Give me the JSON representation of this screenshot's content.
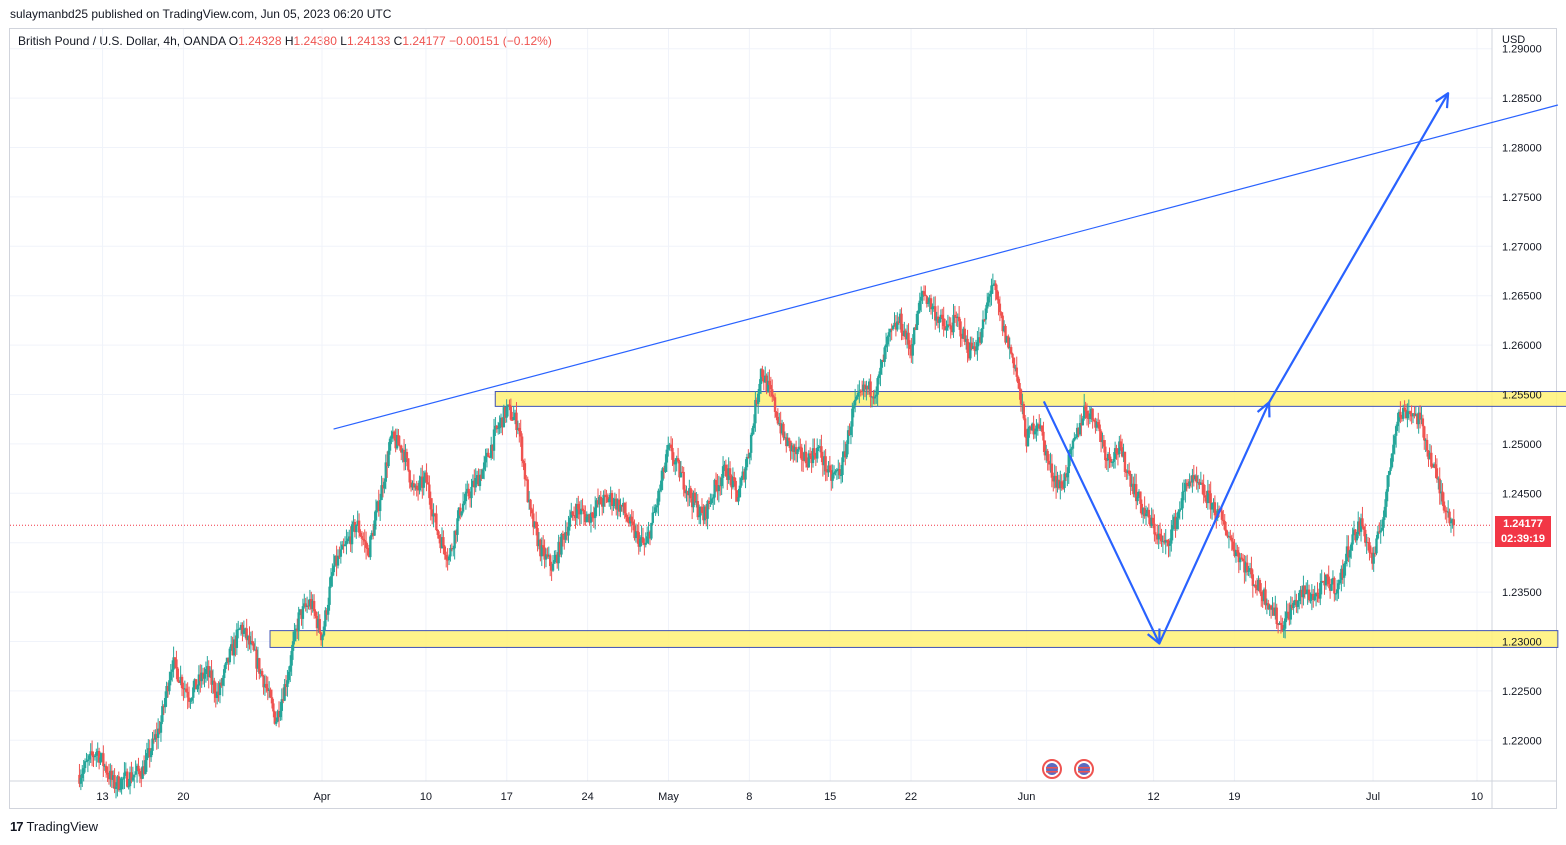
{
  "header": {
    "published": "sulaymanbd25 published on TradingView.com, Jun 05, 2023 06:20 UTC"
  },
  "legend": {
    "symbol": "British Pound / U.S. Dollar, 4h, OANDA",
    "open_label": "O",
    "open": "1.24328",
    "high_label": "H",
    "high": "1.24380",
    "low_label": "L",
    "low": "1.24133",
    "close_label": "C",
    "close": "1.24177",
    "change": "−0.00151 (−0.12%)"
  },
  "axis": {
    "currency": "USD",
    "current_price": "1.24177",
    "countdown": "02:39:19"
  },
  "footer": {
    "brand": "TradingView",
    "brand_mark": "17"
  },
  "colors": {
    "up": "#26a69a",
    "down": "#ef5350",
    "zone_fill": "#fff176",
    "zone_border": "#3f51b5",
    "trendline": "#2962ff",
    "arrow": "#2962ff",
    "price_line": "#f23645"
  },
  "chart_data": {
    "type": "candlestick",
    "symbol": "GBPUSD",
    "timeframe": "4h",
    "y_ticks": [
      1.22,
      1.225,
      1.23,
      1.235,
      1.24,
      1.245,
      1.25,
      1.255,
      1.26,
      1.265,
      1.27,
      1.275,
      1.28,
      1.285,
      1.29
    ],
    "y_tick_labels": [
      "1.22000",
      "1.22500",
      "1.23000",
      "1.23500",
      "1.24000",
      "1.24500",
      "1.25000",
      "1.25500",
      "1.26000",
      "1.26500",
      "1.27000",
      "1.27500",
      "1.28000",
      "1.28500",
      "1.29000"
    ],
    "x_ticks": [
      {
        "label": "13",
        "day": -19
      },
      {
        "label": "20",
        "day": -12
      },
      {
        "label": "Apr",
        "day": 0
      },
      {
        "label": "10",
        "day": 9
      },
      {
        "label": "17",
        "day": 16
      },
      {
        "label": "24",
        "day": 23
      },
      {
        "label": "May",
        "day": 30
      },
      {
        "label": "8",
        "day": 37
      },
      {
        "label": "15",
        "day": 44
      },
      {
        "label": "22",
        "day": 51
      },
      {
        "label": "Jun",
        "day": 61
      },
      {
        "label": "12",
        "day": 72
      },
      {
        "label": "19",
        "day": 79
      },
      {
        "label": "Jul",
        "day": 91
      },
      {
        "label": "10",
        "day": 100
      }
    ],
    "price_path": [
      {
        "day": -21,
        "price": 1.2165
      },
      {
        "day": -19.5,
        "price": 1.219
      },
      {
        "day": -18,
        "price": 1.2155
      },
      {
        "day": -15.5,
        "price": 1.217
      },
      {
        "day": -14,
        "price": 1.2215
      },
      {
        "day": -13,
        "price": 1.228
      },
      {
        "day": -11.5,
        "price": 1.2245
      },
      {
        "day": -10,
        "price": 1.227
      },
      {
        "day": -9,
        "price": 1.2245
      },
      {
        "day": -8,
        "price": 1.2285
      },
      {
        "day": -7,
        "price": 1.2315
      },
      {
        "day": -6,
        "price": 1.229
      },
      {
        "day": -5,
        "price": 1.226
      },
      {
        "day": -4,
        "price": 1.222
      },
      {
        "day": -3,
        "price": 1.2265
      },
      {
        "day": -2,
        "price": 1.2325
      },
      {
        "day": -1,
        "price": 1.234
      },
      {
        "day": 0,
        "price": 1.2305
      },
      {
        "day": 1,
        "price": 1.2375
      },
      {
        "day": 2,
        "price": 1.2395
      },
      {
        "day": 3,
        "price": 1.242
      },
      {
        "day": 4,
        "price": 1.239
      },
      {
        "day": 5,
        "price": 1.2445
      },
      {
        "day": 6,
        "price": 1.2505
      },
      {
        "day": 7,
        "price": 1.2495
      },
      {
        "day": 8,
        "price": 1.245
      },
      {
        "day": 9,
        "price": 1.2465
      },
      {
        "day": 10,
        "price": 1.241
      },
      {
        "day": 11,
        "price": 1.2385
      },
      {
        "day": 12,
        "price": 1.2435
      },
      {
        "day": 13,
        "price": 1.2455
      },
      {
        "day": 14,
        "price": 1.2475
      },
      {
        "day": 15,
        "price": 1.251
      },
      {
        "day": 16,
        "price": 1.2535
      },
      {
        "day": 17,
        "price": 1.252
      },
      {
        "day": 18,
        "price": 1.243
      },
      {
        "day": 19,
        "price": 1.239
      },
      {
        "day": 20,
        "price": 1.2375
      },
      {
        "day": 21,
        "price": 1.241
      },
      {
        "day": 22,
        "price": 1.2435
      },
      {
        "day": 23,
        "price": 1.2425
      },
      {
        "day": 24,
        "price": 1.244
      },
      {
        "day": 25,
        "price": 1.2445
      },
      {
        "day": 26,
        "price": 1.2435
      },
      {
        "day": 27,
        "price": 1.241
      },
      {
        "day": 28,
        "price": 1.2395
      },
      {
        "day": 29,
        "price": 1.244
      },
      {
        "day": 30,
        "price": 1.2495
      },
      {
        "day": 31,
        "price": 1.247
      },
      {
        "day": 32,
        "price": 1.2445
      },
      {
        "day": 33,
        "price": 1.2425
      },
      {
        "day": 34,
        "price": 1.2455
      },
      {
        "day": 35,
        "price": 1.2475
      },
      {
        "day": 36,
        "price": 1.2445
      },
      {
        "day": 37,
        "price": 1.2495
      },
      {
        "day": 38,
        "price": 1.2575
      },
      {
        "day": 39,
        "price": 1.2545
      },
      {
        "day": 40,
        "price": 1.2505
      },
      {
        "day": 41,
        "price": 1.249
      },
      {
        "day": 42,
        "price": 1.2485
      },
      {
        "day": 43,
        "price": 1.2495
      },
      {
        "day": 44,
        "price": 1.2465
      },
      {
        "day": 45,
        "price": 1.2475
      },
      {
        "day": 46,
        "price": 1.2535
      },
      {
        "day": 47,
        "price": 1.2555
      },
      {
        "day": 48,
        "price": 1.2555
      },
      {
        "day": 49,
        "price": 1.2605
      },
      {
        "day": 50,
        "price": 1.2625
      },
      {
        "day": 51,
        "price": 1.2595
      },
      {
        "day": 52,
        "price": 1.2655
      },
      {
        "day": 53,
        "price": 1.2635
      },
      {
        "day": 54,
        "price": 1.2615
      },
      {
        "day": 55,
        "price": 1.2625
      },
      {
        "day": 56,
        "price": 1.2595
      },
      {
        "day": 57,
        "price": 1.2605
      },
      {
        "day": 58,
        "price": 1.2665
      },
      {
        "day": 59,
        "price": 1.2615
      },
      {
        "day": 60,
        "price": 1.258
      },
      {
        "day": 61,
        "price": 1.2505
      },
      {
        "day": 62,
        "price": 1.2525
      },
      {
        "day": 63,
        "price": 1.2475
      },
      {
        "day": 64,
        "price": 1.2455
      },
      {
        "day": 65,
        "price": 1.2495
      },
      {
        "day": 66,
        "price": 1.2535
      },
      {
        "day": 67,
        "price": 1.2525
      },
      {
        "day": 68,
        "price": 1.2485
      },
      {
        "day": 69,
        "price": 1.2495
      },
      {
        "day": 70,
        "price": 1.2465
      },
      {
        "day": 71,
        "price": 1.2435
      },
      {
        "day": 72,
        "price": 1.2415
      },
      {
        "day": 73,
        "price": 1.2395
      },
      {
        "day": 74,
        "price": 1.2425
      },
      {
        "day": 75,
        "price": 1.2465
      },
      {
        "day": 76,
        "price": 1.2455
      },
      {
        "day": 77,
        "price": 1.244
      },
      {
        "day": 78,
        "price": 1.242
      },
      {
        "day": 79,
        "price": 1.2395
      },
      {
        "day": 80,
        "price": 1.2375
      },
      {
        "day": 81,
        "price": 1.2355
      },
      {
        "day": 82,
        "price": 1.234
      },
      {
        "day": 83,
        "price": 1.2315
      },
      {
        "day": 84,
        "price": 1.2335
      },
      {
        "day": 85,
        "price": 1.235
      },
      {
        "day": 86,
        "price": 1.2345
      },
      {
        "day": 87,
        "price": 1.236
      },
      {
        "day": 88,
        "price": 1.2355
      },
      {
        "day": 89,
        "price": 1.24
      },
      {
        "day": 90,
        "price": 1.242
      },
      {
        "day": 91,
        "price": 1.238
      },
      {
        "day": 92,
        "price": 1.2435
      },
      {
        "day": 93,
        "price": 1.2525
      },
      {
        "day": 94,
        "price": 1.2535
      },
      {
        "day": 95,
        "price": 1.2525
      },
      {
        "day": 96,
        "price": 1.2485
      },
      {
        "day": 97,
        "price": 1.2445
      },
      {
        "day": 98,
        "price": 1.2418
      }
    ],
    "last_price": 1.24177,
    "zones": [
      {
        "name": "resistance-zone",
        "from_day": 15,
        "to_day": 119,
        "low": 1.2538,
        "high": 1.2553
      },
      {
        "name": "support-zone",
        "from_day": -4.5,
        "to_day": 107,
        "low": 1.2294,
        "high": 1.2311
      }
    ],
    "trendline": {
      "from": {
        "day": 1,
        "price": 1.2515
      },
      "to": {
        "day": 107,
        "price": 1.2843
      }
    },
    "projection_path": [
      {
        "day": 62.5,
        "price": 1.2543
      },
      {
        "day": 72.5,
        "price": 1.2298
      },
      {
        "day": 82,
        "price": 1.2542
      },
      {
        "day": 97.5,
        "price": 1.2855
      }
    ]
  }
}
